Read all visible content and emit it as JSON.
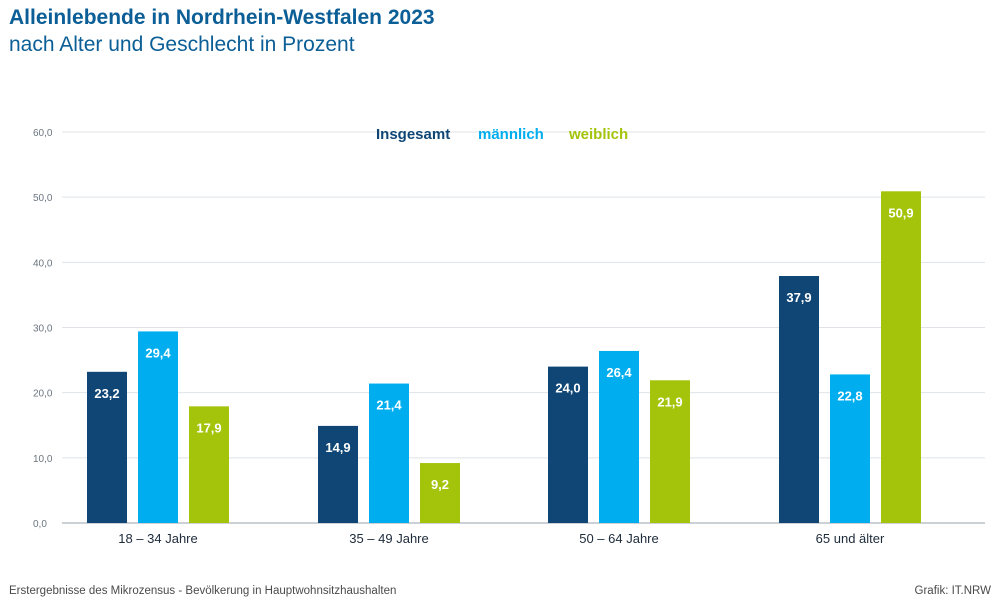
{
  "title": "Alleinlebende in Nordrhein-Westfalen 2023",
  "subtitle": "nach Alter und Geschlecht in Prozent",
  "footer": {
    "source": "Erstergebnisse des Mikrozensus - Bevölkerung in Hauptwohnsitzhaushalten",
    "credit": "Grafik: IT.NRW"
  },
  "chart_data": {
    "type": "bar",
    "categories": [
      "18 – 34 Jahre",
      "35 – 49 Jahre",
      "50 – 64 Jahre",
      "65 und älter"
    ],
    "series": [
      {
        "name": "Insgesamt",
        "color": "#0f4675",
        "values": [
          23.2,
          14.9,
          24.0,
          37.9
        ],
        "labels": [
          "23,2",
          "14,9",
          "24,0",
          "37,9"
        ]
      },
      {
        "name": "männlich",
        "color": "#00aeef",
        "values": [
          29.4,
          21.4,
          26.4,
          22.8
        ],
        "labels": [
          "29,4",
          "21,4",
          "26,4",
          "22,8"
        ]
      },
      {
        "name": "weiblich",
        "color": "#a3c40b",
        "values": [
          17.9,
          9.2,
          21.9,
          50.9
        ],
        "labels": [
          "17,9",
          "9,2",
          "21,9",
          "50,9"
        ]
      }
    ],
    "yticks": [
      "0,0",
      "10,0",
      "20,0",
      "30,0",
      "40,0",
      "50,0",
      "60,0"
    ],
    "ylim": [
      0,
      60
    ],
    "grid": true,
    "legend": "top-center",
    "xlabel": "",
    "ylabel": ""
  }
}
